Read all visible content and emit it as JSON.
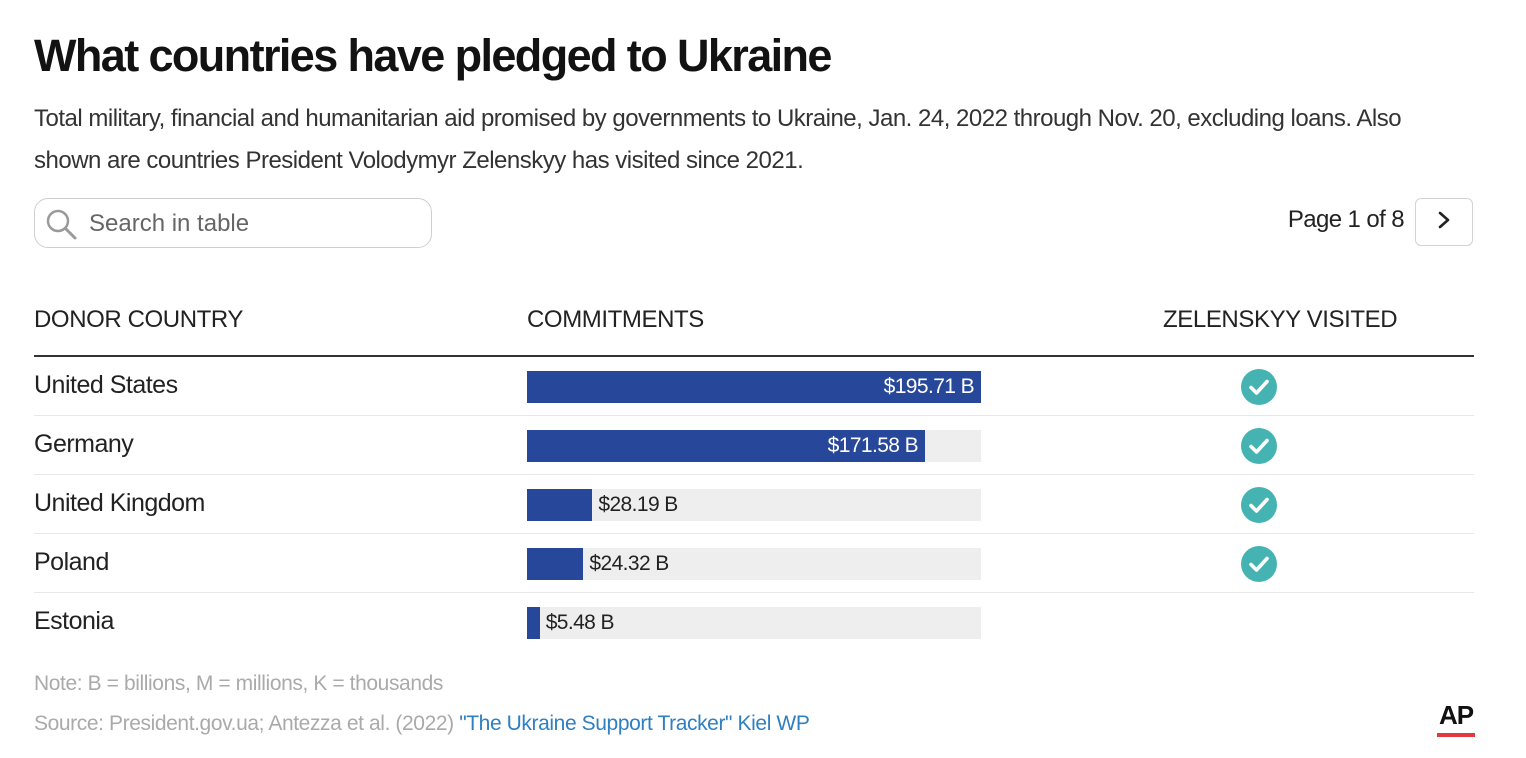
{
  "title": "What countries have pledged to Ukraine",
  "subtitle": "Total military, financial and humanitarian aid promised by governments to Ukraine, Jan. 24, 2022 through Nov. 20, excluding loans. Also shown are countries President Volodymyr Zelenskyy has visited since 2021.",
  "search": {
    "placeholder": "Search in table",
    "icon": "search-icon"
  },
  "pagination": {
    "label": "Page 1 of 8",
    "next_icon": "chevron-right-icon"
  },
  "table": {
    "columns": [
      "DONOR COUNTRY",
      "COMMITMENTS",
      "ZELENSKYY VISITED"
    ]
  },
  "chart_data": {
    "type": "table",
    "columns": [
      "DONOR COUNTRY",
      "COMMITMENTS",
      "ZELENSKYY VISITED"
    ],
    "unit": "B",
    "max": 195.71,
    "rows": [
      {
        "country": "United States",
        "value": 195.71,
        "label": "$195.71 B",
        "visited": true
      },
      {
        "country": "Germany",
        "value": 171.58,
        "label": "$171.58 B",
        "visited": true
      },
      {
        "country": "United Kingdom",
        "value": 28.19,
        "label": "$28.19 B",
        "visited": true
      },
      {
        "country": "Poland",
        "value": 24.32,
        "label": "$24.32 B",
        "visited": true
      },
      {
        "country": "Estonia",
        "value": 5.48,
        "label": "$5.48 B",
        "visited": false
      }
    ]
  },
  "colors": {
    "bar": "#27479a",
    "track": "#eeeeee",
    "check": "#46b3b3",
    "link": "#2f7fc1"
  },
  "footer": {
    "note": "Note: B = billions, M = millions, K = thousands",
    "source_prefix": "Source: President.gov.ua; Antezza et al. (2022) ",
    "source_link": "\"The Ukraine Support Tracker\" Kiel WP"
  },
  "logo": "AP"
}
